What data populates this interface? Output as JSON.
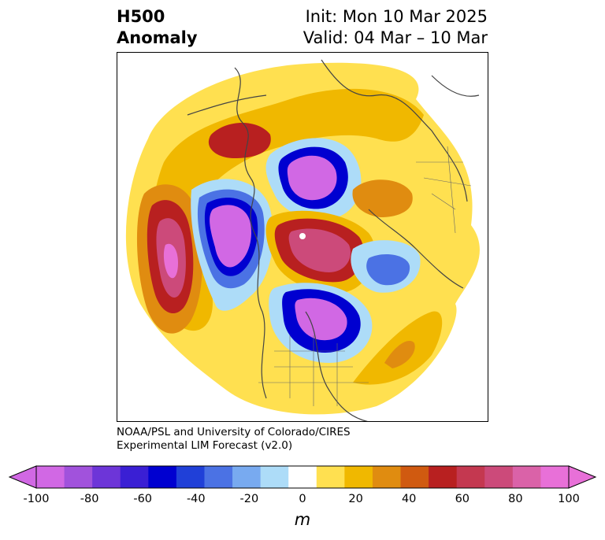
{
  "title": {
    "left_line1": "H500",
    "left_line2": "Anomaly",
    "right_line1": "Init: Mon 10 Mar 2025",
    "right_line2": "Valid: 04 Mar – 10 Mar"
  },
  "credit": {
    "line1": "NOAA/PSL and University of Colorado/CIRES",
    "line2": "Experimental LIM Forecast (v2.0)"
  },
  "colorbar": {
    "units": "m",
    "ticks": [
      "-100",
      "-80",
      "-60",
      "-40",
      "-20",
      "0",
      "20",
      "40",
      "60",
      "80",
      "100"
    ],
    "levels": [
      -100,
      -90,
      -80,
      -70,
      -60,
      -50,
      -40,
      -30,
      -20,
      -10,
      10,
      20,
      30,
      40,
      50,
      60,
      70,
      80,
      90,
      100
    ],
    "colors": [
      "#d168e4",
      "#a152dc",
      "#6d35d8",
      "#3a1fd4",
      "#0000d0",
      "#2040d8",
      "#4b72e4",
      "#78aaf0",
      "#addcf8",
      "#ffffff",
      "#ffe050",
      "#f0b800",
      "#e08c10",
      "#d05a10",
      "#b82020",
      "#c43850",
      "#cc4a7a",
      "#da62a8",
      "#e870d8"
    ],
    "under_color": "#d168e4",
    "over_color": "#e870d8"
  }
}
